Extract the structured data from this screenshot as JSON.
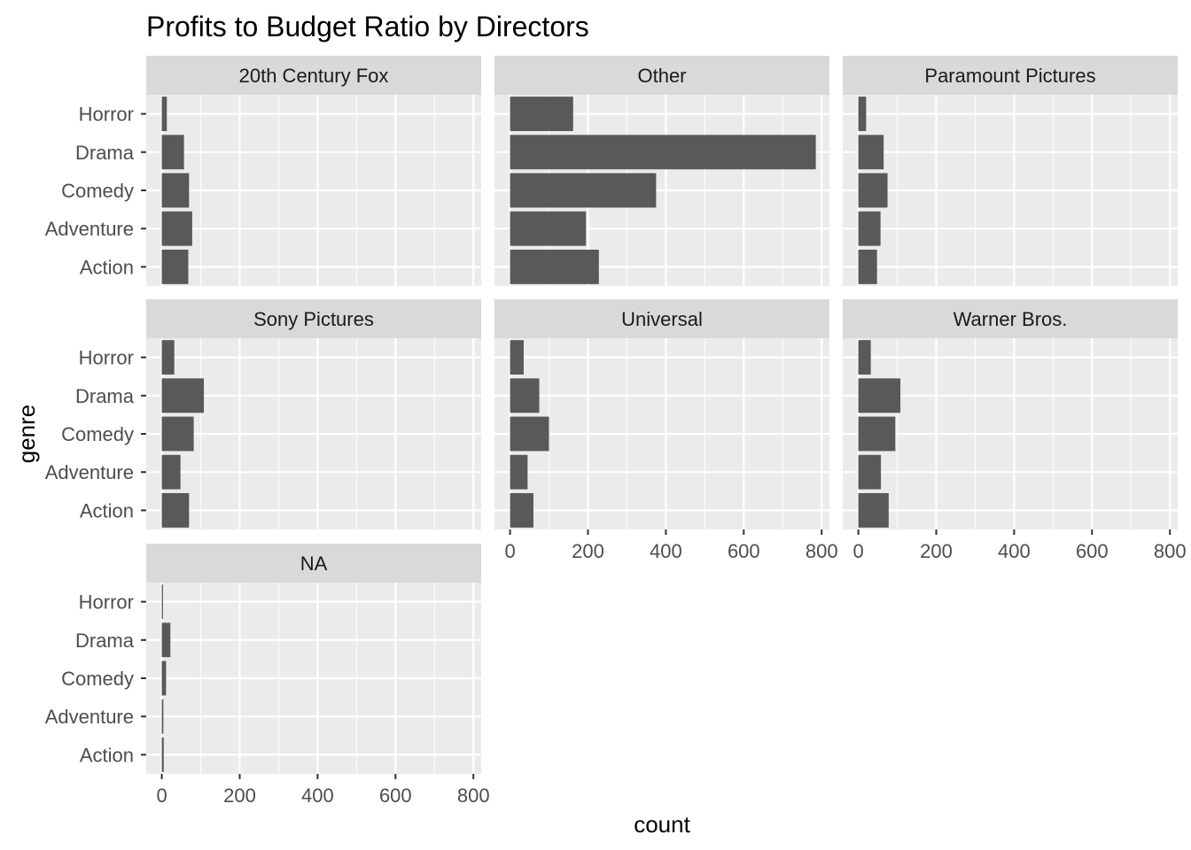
{
  "chart_data": {
    "type": "bar",
    "orientation": "horizontal",
    "title": "Profits to Budget Ratio by Directors",
    "xlabel": "count",
    "ylabel": "genre",
    "categories": [
      "Action",
      "Adventure",
      "Comedy",
      "Drama",
      "Horror"
    ],
    "xlim": [
      -40,
      820
    ],
    "xticks": [
      0,
      200,
      400,
      600,
      800
    ],
    "grid": true,
    "legend": "none",
    "colors": {
      "bar": "#595959",
      "panel_bg": "#ebebeb",
      "strip_bg": "#d9d9d9",
      "grid": "#ffffff"
    },
    "facets": [
      {
        "name": "20th Century Fox",
        "values": [
          68,
          78,
          70,
          57,
          13
        ]
      },
      {
        "name": "Other",
        "values": [
          228,
          195,
          375,
          785,
          162
        ]
      },
      {
        "name": "Paramount Pictures",
        "values": [
          48,
          57,
          75,
          65,
          20
        ]
      },
      {
        "name": "Sony Pictures",
        "values": [
          70,
          48,
          82,
          108,
          32
        ]
      },
      {
        "name": "Universal",
        "values": [
          60,
          45,
          100,
          75,
          35
        ]
      },
      {
        "name": "Warner Bros.",
        "values": [
          78,
          58,
          95,
          108,
          32
        ]
      },
      {
        "name": "NA",
        "values": [
          5,
          4,
          11,
          22,
          3
        ]
      }
    ]
  }
}
